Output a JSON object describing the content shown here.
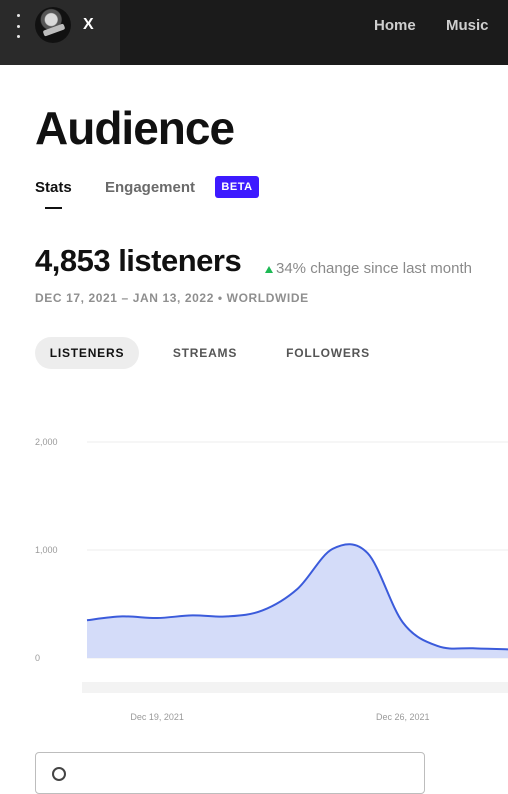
{
  "header": {
    "artist_name": "X",
    "nav": [
      "Home",
      "Music"
    ]
  },
  "page": {
    "title": "Audience",
    "tabs": [
      {
        "label": "Stats",
        "active": true
      },
      {
        "label": "Engagement",
        "active": false
      }
    ],
    "beta_badge": "BETA"
  },
  "summary": {
    "metric": "4,853 listeners",
    "change": "34% change since last month",
    "change_direction": "up",
    "date_range": "DEC 17, 2021 – JAN 13, 2022 • WORLDWIDE"
  },
  "filters": [
    {
      "label": "LISTENERS",
      "active": true
    },
    {
      "label": "STREAMS",
      "active": false
    },
    {
      "label": "FOLLOWERS",
      "active": false
    }
  ],
  "chart_data": {
    "type": "area",
    "y_ticks": [
      "2,000",
      "1,000",
      "0"
    ],
    "x_ticks": [
      "Dec 19, 2021",
      "Dec 26, 2021"
    ],
    "ylim": [
      0,
      2000
    ],
    "x": [
      "Dec 17",
      "Dec 18",
      "Dec 19",
      "Dec 20",
      "Dec 21",
      "Dec 22",
      "Dec 23",
      "Dec 24",
      "Dec 25",
      "Dec 26",
      "Dec 27",
      "Dec 28",
      "Dec 29"
    ],
    "values": [
      350,
      385,
      370,
      395,
      385,
      440,
      640,
      1010,
      970,
      330,
      110,
      90,
      80
    ],
    "colors": {
      "line": "#3b5bdb",
      "fill": "#d4dcf9"
    }
  },
  "colors": {
    "topbar": "#1b1b1b",
    "accent": "#3d1aff",
    "positive": "#1db954"
  }
}
